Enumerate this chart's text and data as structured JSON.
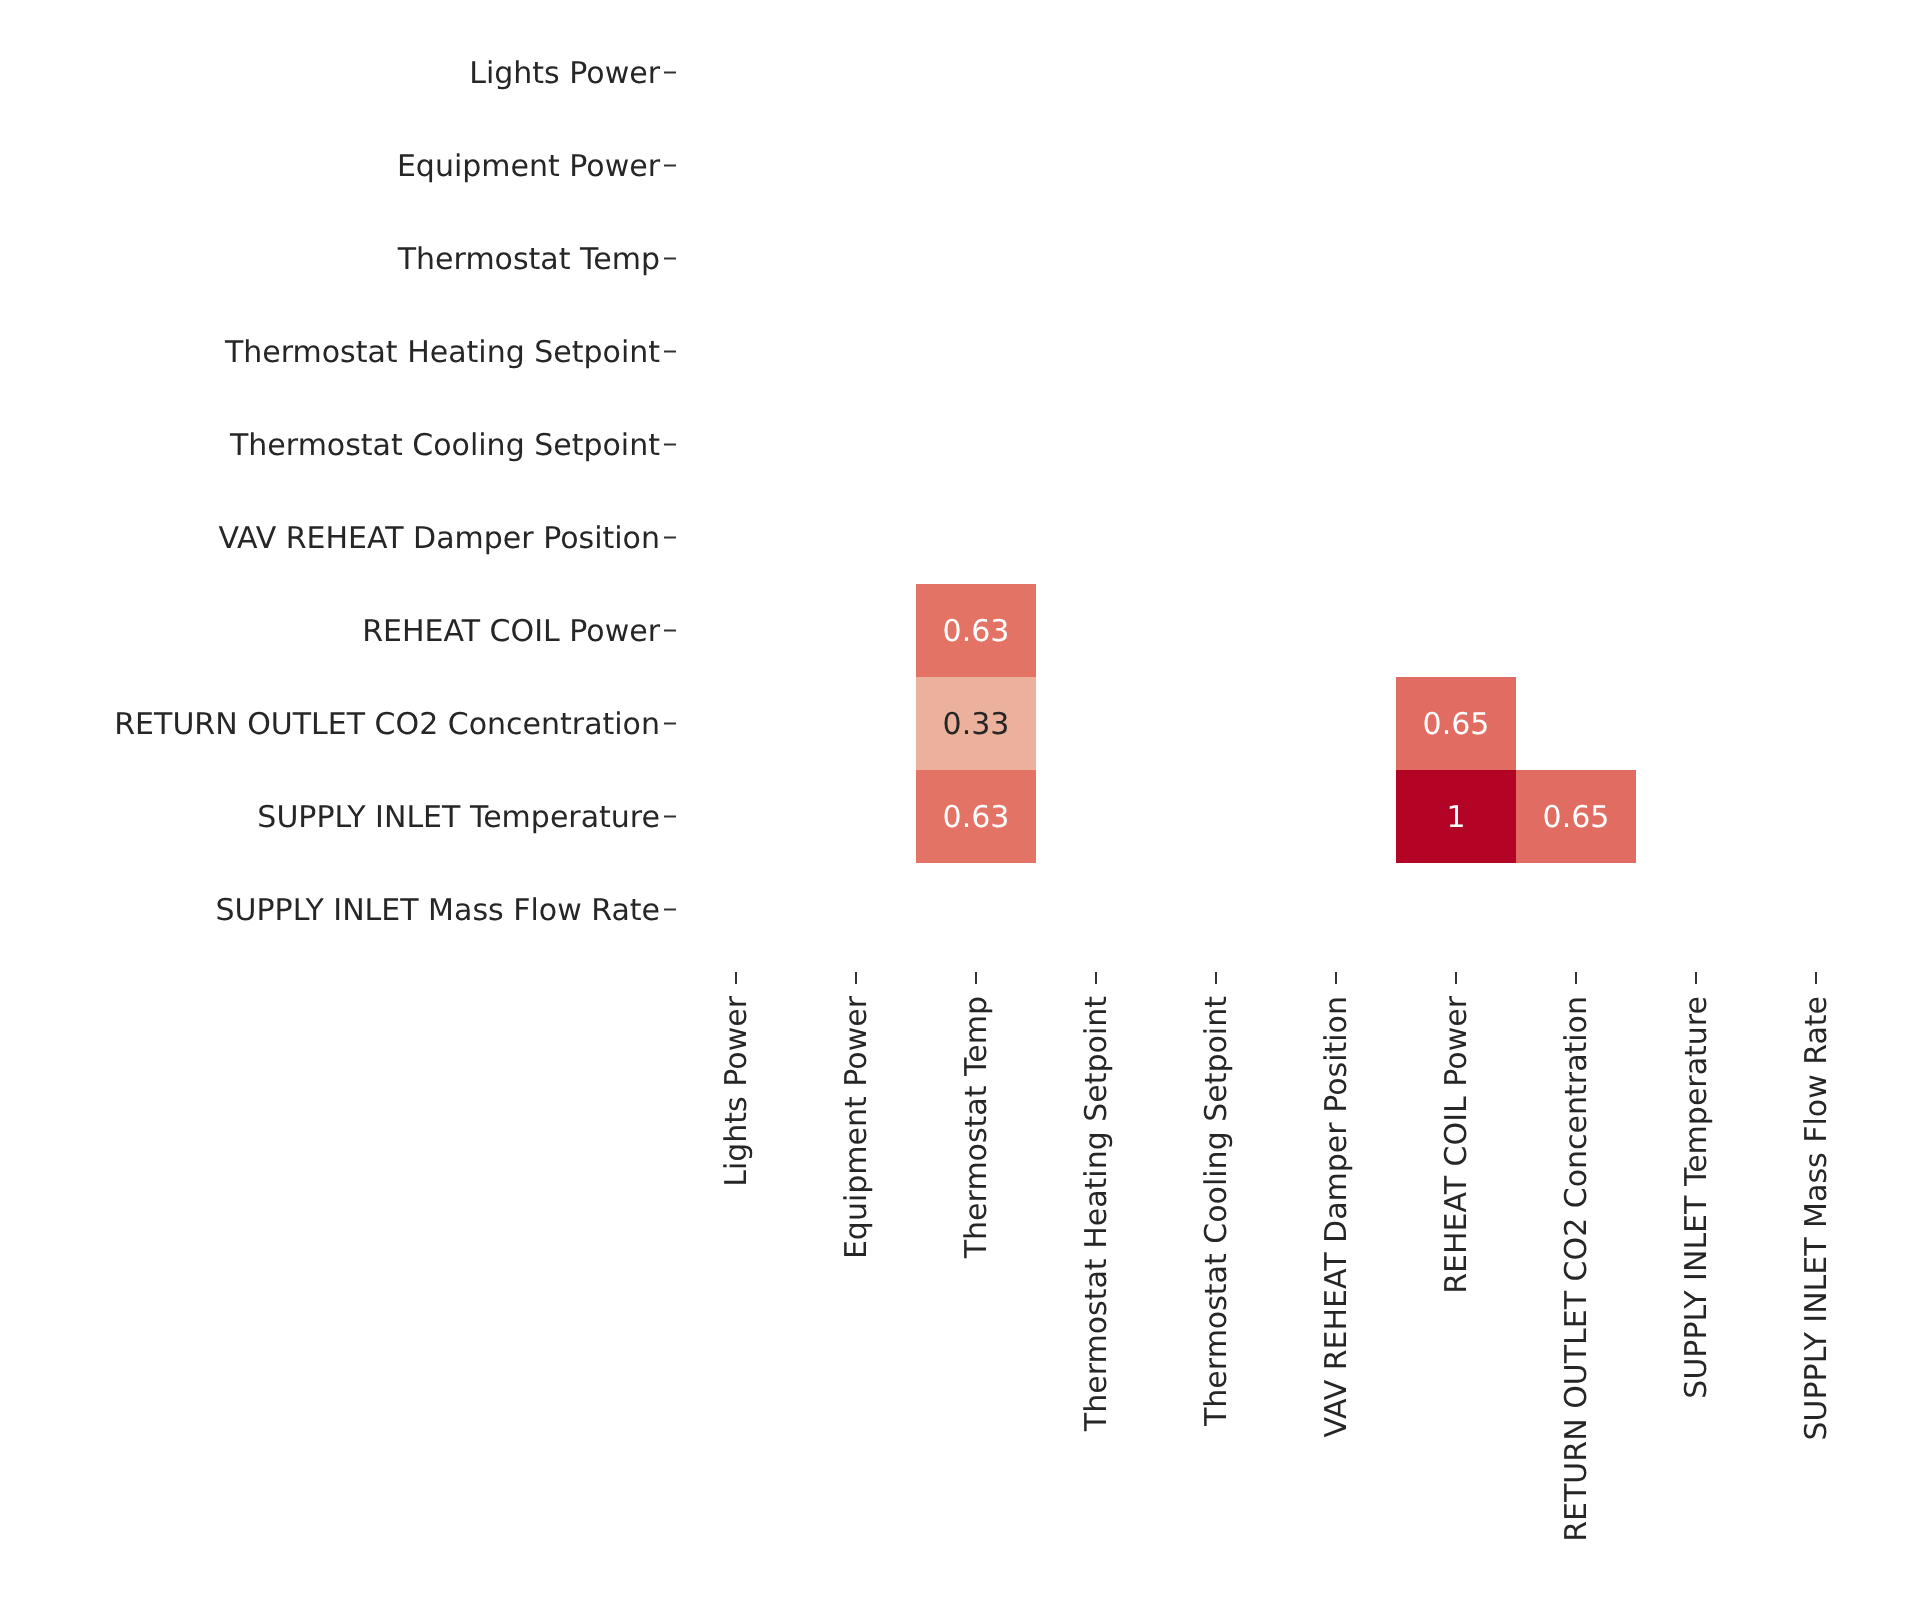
{
  "chart_data": {
    "type": "heatmap",
    "categories": [
      "Lights Power",
      "Equipment Power",
      "Thermostat Temp",
      "Thermostat Heating Setpoint",
      "Thermostat Cooling Setpoint",
      "VAV REHEAT Damper Position",
      "REHEAT COIL Power",
      "RETURN OUTLET CO2 Concentration",
      "SUPPLY INLET Temperature",
      "SUPPLY INLET Mass Flow Rate"
    ],
    "y_categories": [
      "Lights Power",
      "Equipment Power",
      "Thermostat Temp",
      "Thermostat Heating Setpoint",
      "Thermostat Cooling Setpoint",
      "VAV REHEAT Damper Position",
      "REHEAT COIL Power",
      "RETURN OUTLET CO2 Concentration",
      "SUPPLY INLET Temperature",
      "SUPPLY INLET Mass Flow Rate"
    ],
    "cells": [
      [
        null,
        null,
        null,
        null,
        null,
        null,
        null,
        null,
        null,
        null
      ],
      [
        null,
        null,
        null,
        null,
        null,
        null,
        null,
        null,
        null,
        null
      ],
      [
        null,
        null,
        null,
        null,
        null,
        null,
        null,
        null,
        null,
        null
      ],
      [
        null,
        null,
        null,
        null,
        null,
        null,
        null,
        null,
        null,
        null
      ],
      [
        null,
        null,
        null,
        null,
        null,
        null,
        null,
        null,
        null,
        null
      ],
      [
        null,
        null,
        null,
        null,
        null,
        null,
        null,
        null,
        null,
        null
      ],
      [
        null,
        null,
        0.63,
        null,
        null,
        null,
        null,
        null,
        null,
        null
      ],
      [
        null,
        null,
        0.33,
        null,
        null,
        null,
        0.65,
        null,
        null,
        null
      ],
      [
        null,
        null,
        0.63,
        null,
        null,
        null,
        1,
        0.65,
        null,
        null
      ],
      [
        null,
        null,
        null,
        null,
        null,
        null,
        null,
        null,
        null,
        null
      ]
    ],
    "data_labels": true
  }
}
